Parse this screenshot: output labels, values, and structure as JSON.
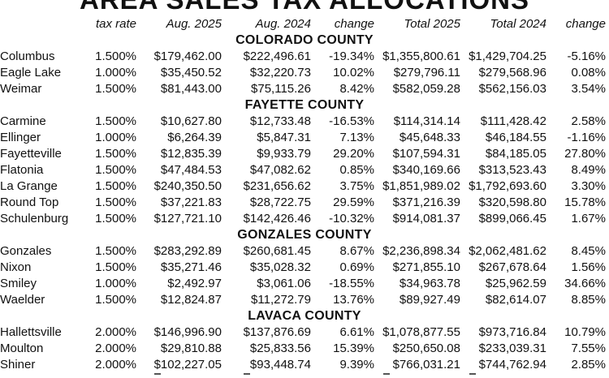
{
  "title": "AREA SALES TAX ALLOCATIONS",
  "columns": {
    "rate": "tax rate",
    "aug2025": "Aug. 2025",
    "aug2024": "Aug. 2024",
    "change": "change",
    "total2025": "Total 2025",
    "total2024": "Total 2024",
    "change2": "change"
  },
  "sections": [
    {
      "county": "COLORADO COUNTY",
      "rows": [
        [
          "Columbus",
          "1.500%",
          "$179,462.00",
          "$222,496.61",
          "-19.34%",
          "$1,355,800.61",
          "$1,429,704.25",
          "-5.16%"
        ],
        [
          "Eagle Lake",
          "1.000%",
          "$35,450.52",
          "$32,220.73",
          "10.02%",
          "$279,796.11",
          "$279,568.96",
          "0.08%"
        ],
        [
          "Weimar",
          "1.500%",
          "$81,443.00",
          "$75,115.26",
          "8.42%",
          "$582,059.28",
          "$562,156.03",
          "3.54%"
        ]
      ]
    },
    {
      "county": "FAYETTE COUNTY",
      "rows": [
        [
          "Carmine",
          "1.500%",
          "$10,627.80",
          "$12,733.48",
          "-16.53%",
          "$114,314.14",
          "$111,428.42",
          "2.58%"
        ],
        [
          "Ellinger",
          "1.000%",
          "$6,264.39",
          "$5,847.31",
          "7.13%",
          "$45,648.33",
          "$46,184.55",
          "-1.16%"
        ],
        [
          "Fayetteville",
          "1.500%",
          "$12,835.39",
          "$9,933.79",
          "29.20%",
          "$107,594.31",
          "$84,185.05",
          "27.80%"
        ],
        [
          "Flatonia",
          "1.500%",
          "$47,484.53",
          "$47,082.62",
          "0.85%",
          "$340,169.66",
          "$313,523.43",
          "8.49%"
        ],
        [
          "La Grange",
          "1.500%",
          "$240,350.50",
          "$231,656.62",
          "3.75%",
          "$1,851,989.02",
          "$1,792,693.60",
          "3.30%"
        ],
        [
          "Round Top",
          "1.500%",
          "$37,221.83",
          "$28,722.75",
          "29.59%",
          "$371,216.39",
          "$320,598.80",
          "15.78%"
        ],
        [
          "Schulenburg",
          "1.500%",
          "$127,721.10",
          "$142,426.46",
          "-10.32%",
          "$914,081.37",
          "$899,066.45",
          "1.67%"
        ]
      ]
    },
    {
      "county": "GONZALES COUNTY",
      "rows": [
        [
          "Gonzales",
          "1.500%",
          "$283,292.89",
          "$260,681.45",
          "8.67%",
          "$2,236,898.34",
          "$2,062,481.62",
          "8.45%"
        ],
        [
          "Nixon",
          "1.500%",
          "$35,271.46",
          "$35,028.32",
          "0.69%",
          "$271,855.10",
          "$267,678.64",
          "1.56%"
        ],
        [
          "Smiley",
          "1.000%",
          "$2,492.97",
          "$3,061.06",
          "-18.55%",
          "$34,963.78",
          "$25,962.59",
          "34.66%"
        ],
        [
          "Waelder",
          "1.500%",
          "$12,824.87",
          "$11,272.79",
          "13.76%",
          "$89,927.49",
          "$82,614.07",
          "8.85%"
        ]
      ]
    },
    {
      "county": "LAVACA COUNTY",
      "rows": [
        [
          "Hallettsville",
          "2.000%",
          "$146,996.90",
          "$137,876.69",
          "6.61%",
          "$1,078,877.55",
          "$973,716.84",
          "10.79%"
        ],
        [
          "Moulton",
          "2.000%",
          "$29,810.88",
          "$25,833.56",
          "15.39%",
          "$250,650.08",
          "$233,039.31",
          "7.55%"
        ],
        [
          "Shiner",
          "2.000%",
          "$102,227.05",
          "$93,448.74",
          "9.39%",
          "$766,031.21",
          "$744,762.94",
          "2.85%"
        ]
      ]
    }
  ]
}
